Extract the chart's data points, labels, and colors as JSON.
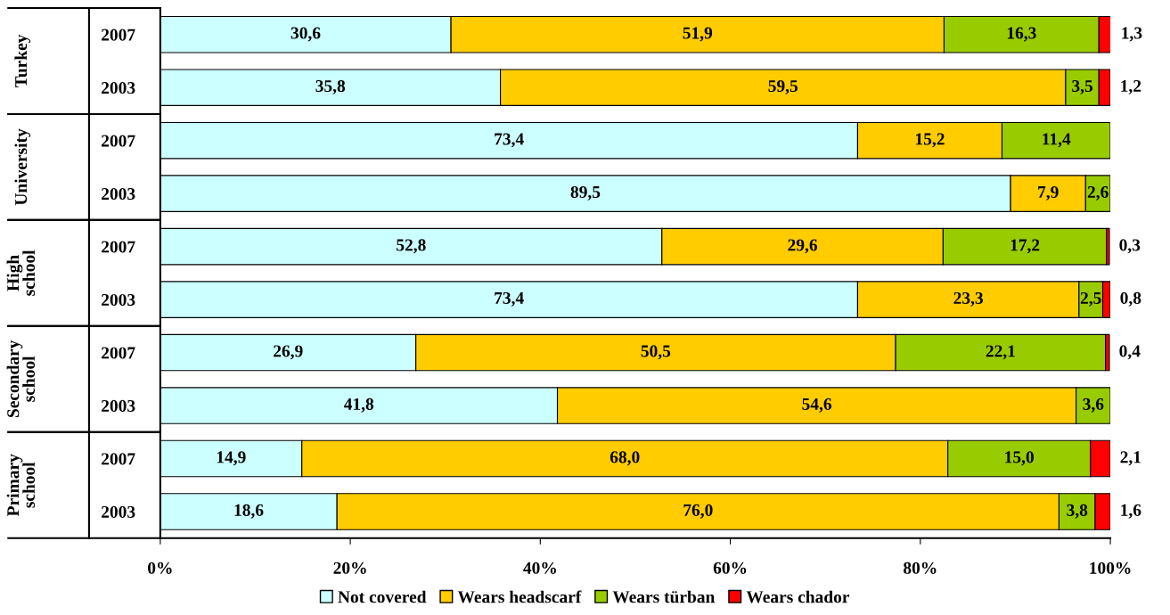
{
  "chart_data": {
    "type": "bar",
    "orientation": "horizontal",
    "stacked": true,
    "categories": [
      "2007",
      "2003",
      "2007",
      "2003",
      "2007",
      "2003",
      "2007",
      "2003",
      "2007",
      "2003"
    ],
    "annotations": [
      "Turkey",
      "University",
      "High\nschool",
      "Secondary\nschool",
      "Primary\nschool"
    ],
    "series": [
      {
        "name": "Not covered",
        "color": "#ccffff",
        "values": [
          30.6,
          35.8,
          73.4,
          89.5,
          52.8,
          73.4,
          26.9,
          41.8,
          14.9,
          18.6
        ],
        "value_labels": [
          "30,6",
          "35,8",
          "73,4",
          "89,5",
          "52,8",
          "73,4",
          "26,9",
          "41,8",
          "14,9",
          "18,6"
        ]
      },
      {
        "name": "Wears headscarf",
        "color": "#ffcc00",
        "values": [
          51.9,
          59.5,
          15.2,
          7.9,
          29.6,
          23.3,
          50.5,
          54.6,
          68.0,
          76.0
        ],
        "value_labels": [
          "51,9",
          "59,5",
          "15,2",
          "7,9",
          "29,6",
          "23,3",
          "50,5",
          "54,6",
          "68,0",
          "76,0"
        ]
      },
      {
        "name": "Wears türban",
        "color": "#99cc00",
        "values": [
          16.3,
          3.5,
          11.4,
          2.6,
          17.2,
          2.5,
          22.1,
          3.6,
          15.0,
          3.8
        ],
        "value_labels": [
          "16,3",
          "3,5",
          "11,4",
          "2,6",
          "17,2",
          "2,5",
          "22,1",
          "3,6",
          "15,0",
          "3,8"
        ]
      },
      {
        "name": "Wears chador",
        "color": "#ff0000",
        "values": [
          1.3,
          1.2,
          null,
          null,
          0.3,
          0.8,
          0.4,
          null,
          2.1,
          1.6
        ],
        "value_labels": [
          "1,3",
          "1,2",
          null,
          null,
          "0,3",
          "0,8",
          "0,4",
          null,
          "2,1",
          "1,6"
        ]
      }
    ],
    "xlim": [
      0,
      100
    ],
    "xticks": [
      {
        "value": 0,
        "label": "0%"
      },
      {
        "value": 20,
        "label": "20%"
      },
      {
        "value": 40,
        "label": "40%"
      },
      {
        "value": 60,
        "label": "60%"
      },
      {
        "value": 80,
        "label": "80%"
      },
      {
        "value": 100,
        "label": "100%"
      }
    ],
    "grid": false,
    "legend": "bottom"
  }
}
